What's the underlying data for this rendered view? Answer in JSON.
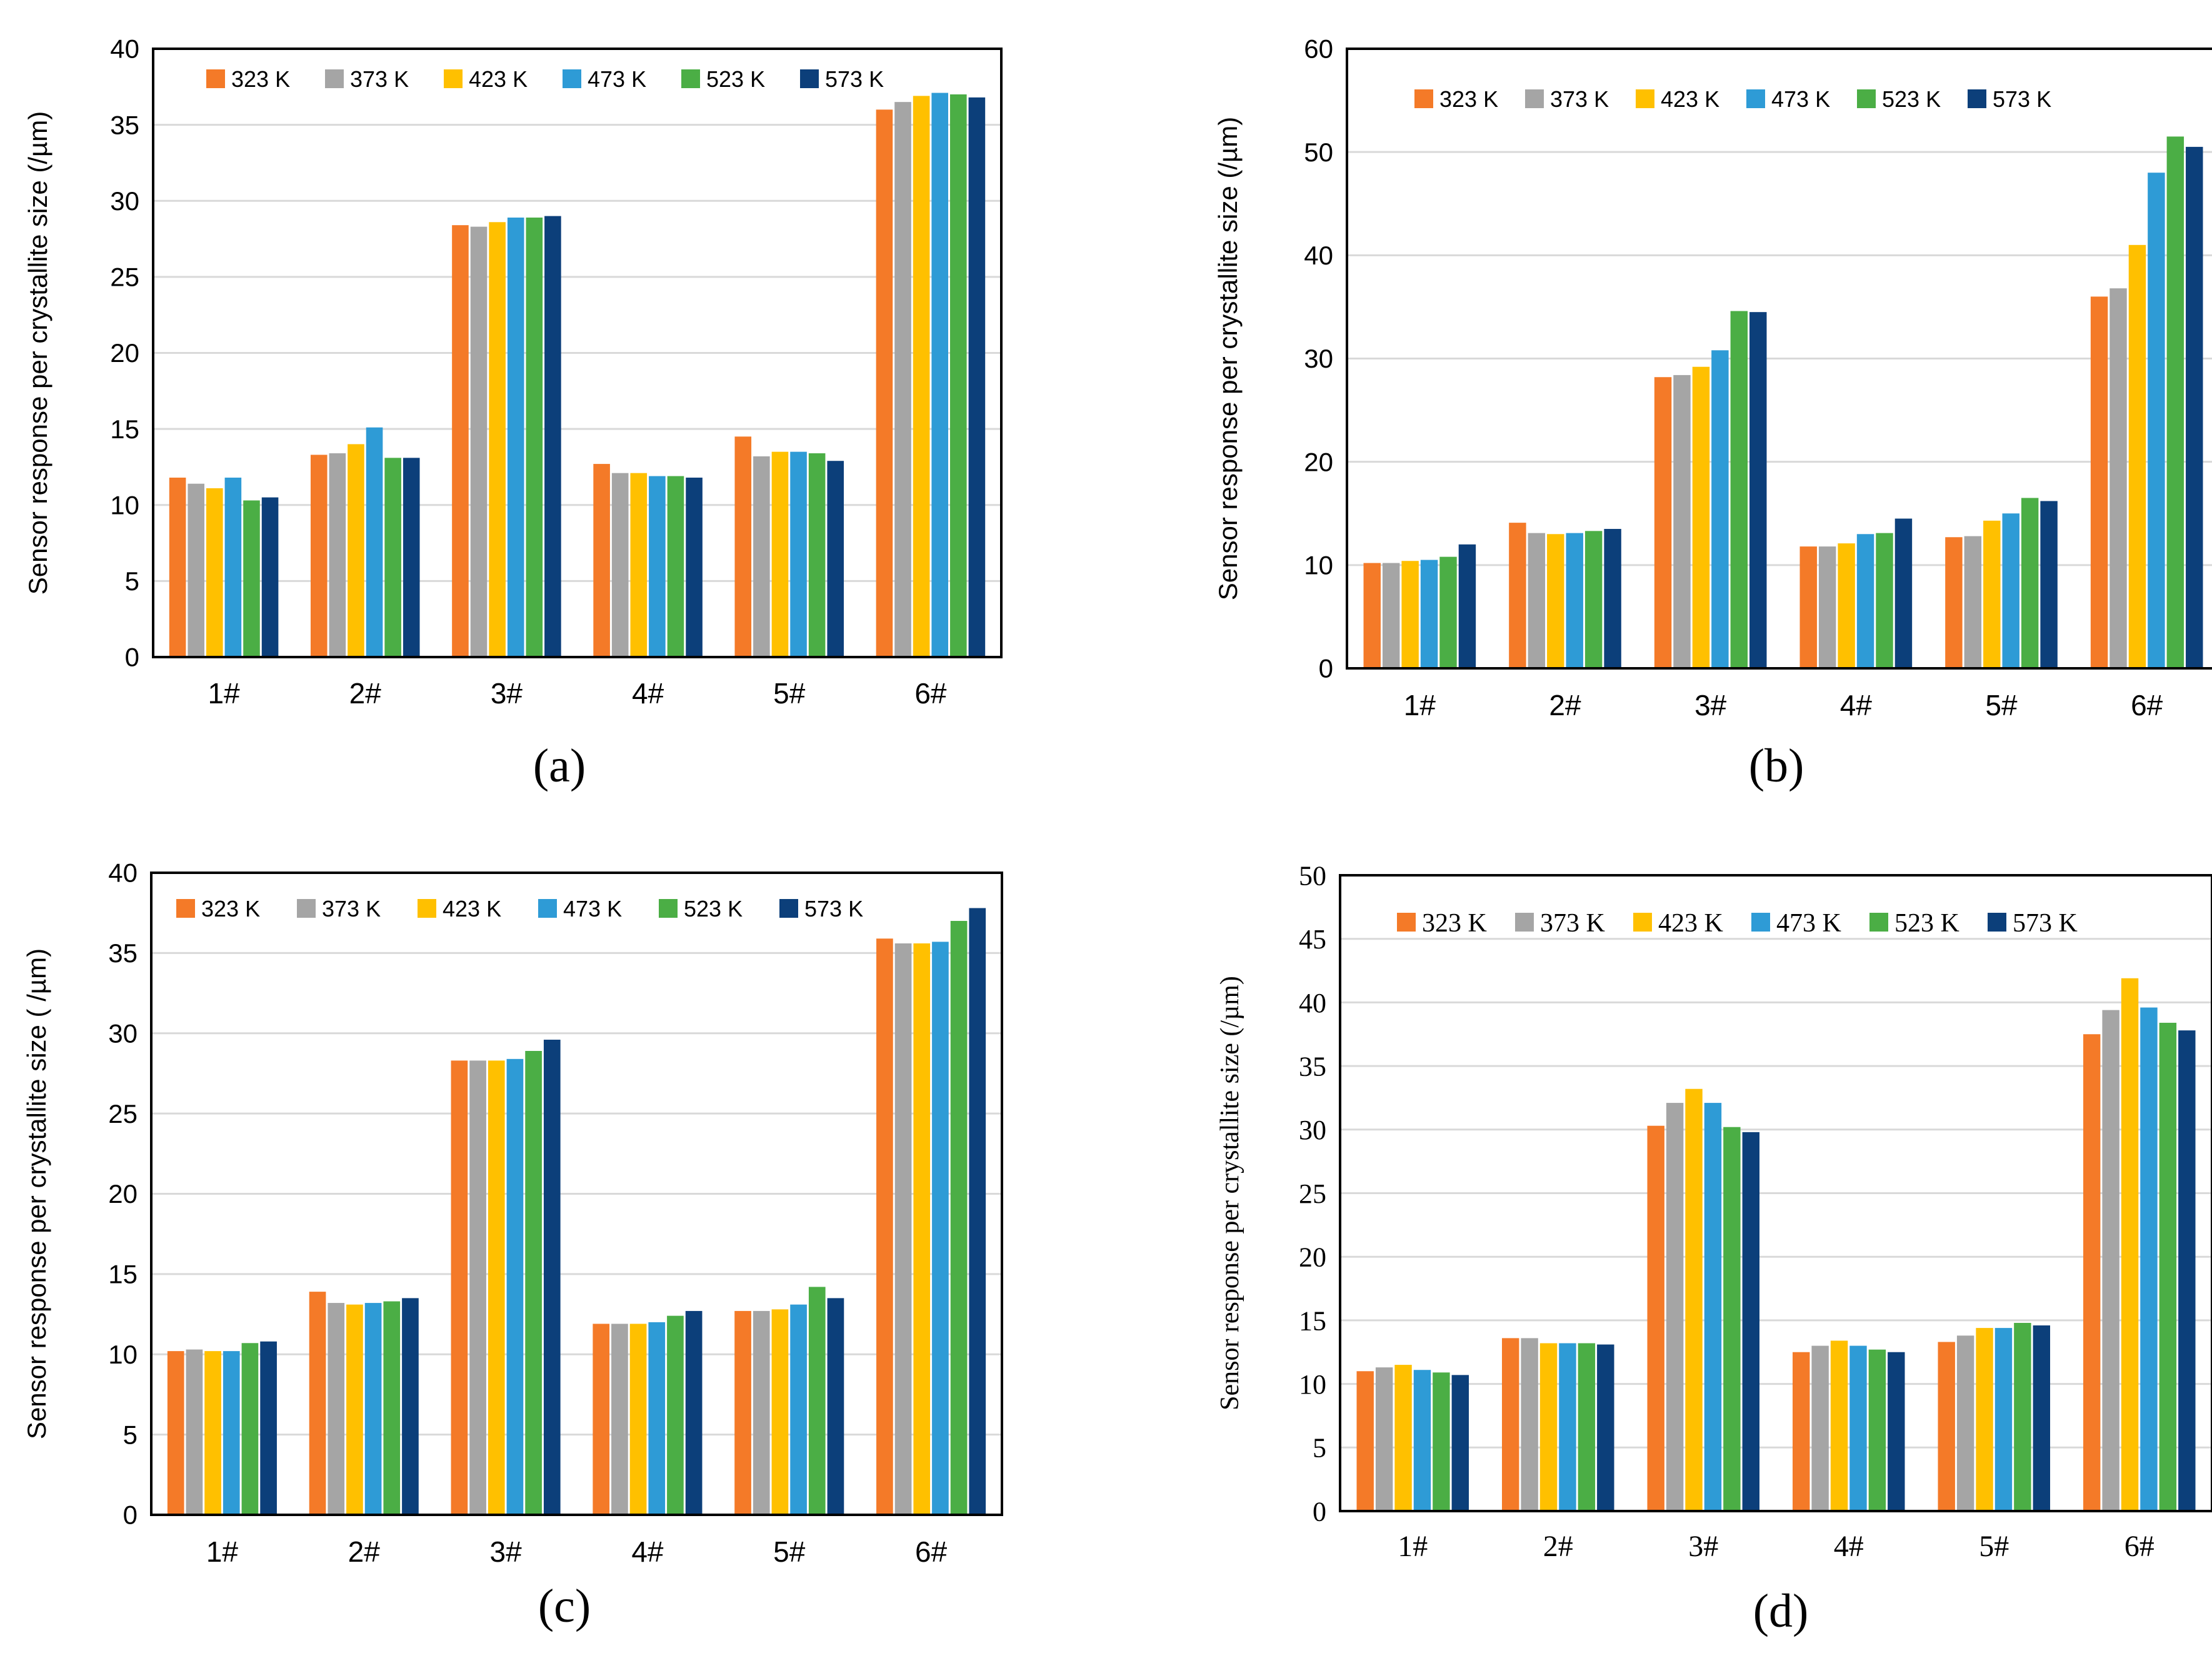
{
  "colors": {
    "323 K": "#F47A28",
    "373 K": "#A5A5A5",
    "423 K": "#FFC000",
    "473 K": "#2E9BD6",
    "523 K": "#4BAE45",
    "573 K": "#0C3F7A",
    "grid": "#D9D9D9",
    "axis": "#000000"
  },
  "chart_data": [
    {
      "panel": "(a)",
      "type": "bar",
      "font": "sans",
      "ylabel": "Sensor response per crystallite size (/µm)",
      "xlabel": "",
      "ylim": [
        0,
        40
      ],
      "yticks": [
        0,
        5,
        10,
        15,
        20,
        25,
        30,
        35,
        40
      ],
      "grid": true,
      "legend": "top-left",
      "categories": [
        "1#",
        "2#",
        "3#",
        "4#",
        "5#",
        "6#"
      ],
      "series": [
        {
          "name": "323 K",
          "values": [
            11.8,
            13.3,
            28.4,
            12.7,
            14.5,
            36.0
          ]
        },
        {
          "name": "373 K",
          "values": [
            11.4,
            13.4,
            28.3,
            12.1,
            13.2,
            36.5
          ]
        },
        {
          "name": "423 K",
          "values": [
            11.1,
            14.0,
            28.6,
            12.1,
            13.5,
            36.9
          ]
        },
        {
          "name": "473 K",
          "values": [
            11.8,
            15.1,
            28.9,
            11.9,
            13.5,
            37.1
          ]
        },
        {
          "name": "523 K",
          "values": [
            10.3,
            13.1,
            28.9,
            11.9,
            13.4,
            37.0
          ]
        },
        {
          "name": "573 K",
          "values": [
            10.5,
            13.1,
            29.0,
            11.8,
            12.9,
            36.8
          ]
        }
      ]
    },
    {
      "panel": "(b)",
      "type": "bar",
      "font": "sans",
      "ylabel": "Sensor response per crystallite size (/µm)",
      "xlabel": "",
      "ylim": [
        0,
        60
      ],
      "yticks": [
        0,
        10,
        20,
        30,
        40,
        50,
        60
      ],
      "grid": true,
      "legend": "top-left",
      "categories": [
        "1#",
        "2#",
        "3#",
        "4#",
        "5#",
        "6#"
      ],
      "series": [
        {
          "name": "323 K",
          "values": [
            10.2,
            14.1,
            28.2,
            11.8,
            12.7,
            36.0
          ]
        },
        {
          "name": "373 K",
          "values": [
            10.2,
            13.1,
            28.4,
            11.8,
            12.8,
            36.8
          ]
        },
        {
          "name": "423 K",
          "values": [
            10.4,
            13.0,
            29.2,
            12.1,
            14.3,
            41.0
          ]
        },
        {
          "name": "473 K",
          "values": [
            10.5,
            13.1,
            30.8,
            13.0,
            15.0,
            48.0
          ]
        },
        {
          "name": "523 K",
          "values": [
            10.8,
            13.3,
            34.6,
            13.1,
            16.5,
            51.5
          ]
        },
        {
          "name": "573 K",
          "values": [
            12.0,
            13.5,
            34.5,
            14.5,
            16.2,
            50.5
          ]
        }
      ]
    },
    {
      "panel": "(c)",
      "type": "bar",
      "font": "sans",
      "ylabel": "Sensor response per crystallite size ( /µm)",
      "xlabel": "",
      "ylim": [
        0,
        40
      ],
      "yticks": [
        0,
        5,
        10,
        15,
        20,
        25,
        30,
        35,
        40
      ],
      "grid": true,
      "legend": "top-left",
      "categories": [
        "1#",
        "2#",
        "3#",
        "4#",
        "5#",
        "6#"
      ],
      "series": [
        {
          "name": "323 K",
          "values": [
            10.2,
            13.9,
            28.3,
            11.9,
            12.7,
            35.9
          ]
        },
        {
          "name": "373 K",
          "values": [
            10.3,
            13.2,
            28.3,
            11.9,
            12.7,
            35.6
          ]
        },
        {
          "name": "423 K",
          "values": [
            10.2,
            13.1,
            28.3,
            11.9,
            12.8,
            35.6
          ]
        },
        {
          "name": "473 K",
          "values": [
            10.2,
            13.2,
            28.4,
            12.0,
            13.1,
            35.7
          ]
        },
        {
          "name": "523 K",
          "values": [
            10.7,
            13.3,
            28.9,
            12.4,
            14.2,
            37.0
          ]
        },
        {
          "name": "573 K",
          "values": [
            10.8,
            13.5,
            29.6,
            12.7,
            13.5,
            37.8
          ]
        }
      ]
    },
    {
      "panel": "(d)",
      "type": "bar",
      "font": "serif",
      "ylabel": "Sensor response per crystallite size (/µm)",
      "xlabel": "",
      "ylim": [
        0,
        50
      ],
      "yticks": [
        0,
        5,
        10,
        15,
        20,
        25,
        30,
        35,
        40,
        45,
        50
      ],
      "grid": true,
      "legend": "top-left",
      "categories": [
        "1#",
        "2#",
        "3#",
        "4#",
        "5#",
        "6#"
      ],
      "series": [
        {
          "name": "323 K",
          "values": [
            11.0,
            13.6,
            30.3,
            12.5,
            13.3,
            37.5
          ]
        },
        {
          "name": "373 K",
          "values": [
            11.3,
            13.6,
            32.1,
            13.0,
            13.8,
            39.4
          ]
        },
        {
          "name": "423 K",
          "values": [
            11.5,
            13.2,
            33.2,
            13.4,
            14.4,
            41.9
          ]
        },
        {
          "name": "473 K",
          "values": [
            11.1,
            13.2,
            32.1,
            13.0,
            14.4,
            39.6
          ]
        },
        {
          "name": "523 K",
          "values": [
            10.9,
            13.2,
            30.2,
            12.7,
            14.8,
            38.4
          ]
        },
        {
          "name": "573 K",
          "values": [
            10.7,
            13.1,
            29.8,
            12.5,
            14.6,
            37.8
          ]
        }
      ]
    }
  ]
}
